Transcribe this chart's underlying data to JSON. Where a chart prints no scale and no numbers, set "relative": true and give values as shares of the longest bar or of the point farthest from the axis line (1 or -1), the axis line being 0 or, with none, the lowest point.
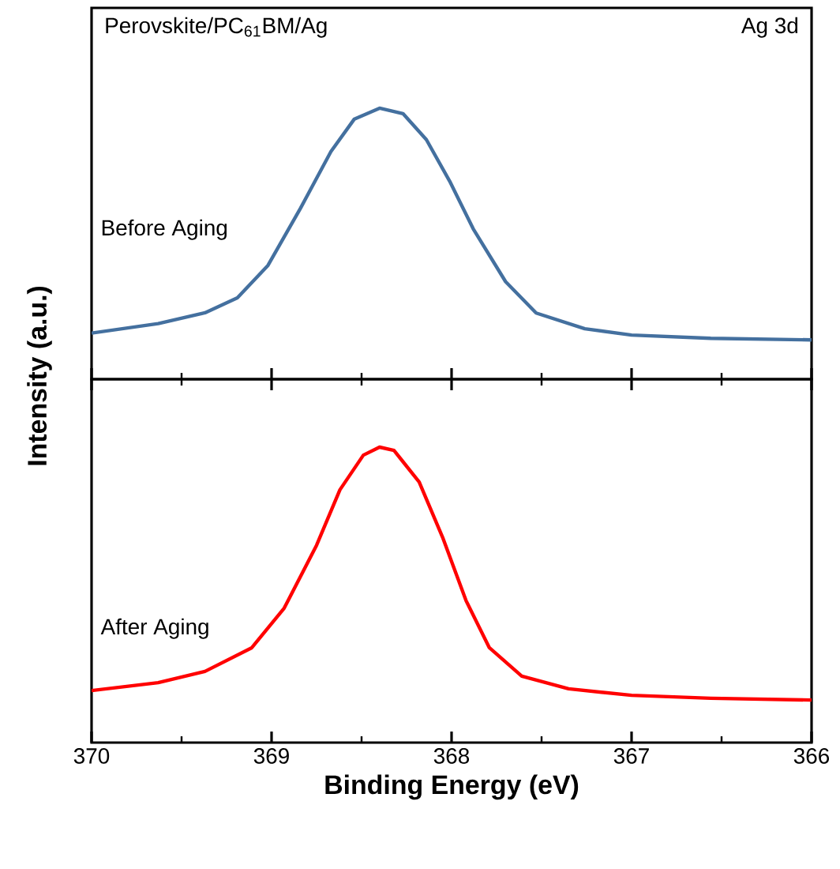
{
  "chart_data": [
    {
      "type": "line",
      "relative": true,
      "xlim": [
        370,
        366
      ],
      "xticks": [
        370,
        369,
        368,
        367,
        366
      ],
      "tick_labels": false,
      "ylabel": "Intensity (a.u.)",
      "annotations": [
        "Perovskite/PC$_{61}$BM/Ag",
        "Ag 3d"
      ],
      "series": [
        {
          "name": "Before Aging",
          "color": "#44709f",
          "x": [
            370,
            369.63,
            369.37,
            369.19,
            369.02,
            368.84,
            368.67,
            368.54,
            368.4,
            368.27,
            368.14,
            368.01,
            367.88,
            367.7,
            367.53,
            367.26,
            367.0,
            366.56,
            366.0
          ],
          "values": [
            0.17,
            0.205,
            0.245,
            0.3,
            0.42,
            0.63,
            0.84,
            0.96,
            1,
            0.98,
            0.884,
            0.73,
            0.555,
            0.36,
            0.244,
            0.186,
            0.163,
            0.151,
            0.145
          ]
        }
      ]
    },
    {
      "type": "line",
      "relative": true,
      "xlim": [
        370,
        366
      ],
      "xticks": [
        370,
        369,
        368,
        367,
        366
      ],
      "tick_labels": "x",
      "xlabel": "Binding Energy (eV)",
      "series": [
        {
          "name": "After Aging",
          "color": "#ff0000",
          "x": [
            370,
            369.63,
            369.37,
            369.11,
            368.93,
            368.75,
            368.62,
            368.49,
            368.4,
            368.32,
            368.18,
            368.05,
            367.92,
            367.79,
            367.61,
            367.35,
            367.0,
            366.56,
            366.0
          ],
          "values": [
            0.176,
            0.203,
            0.241,
            0.321,
            0.455,
            0.668,
            0.856,
            0.973,
            1,
            0.989,
            0.882,
            0.695,
            0.481,
            0.321,
            0.225,
            0.182,
            0.16,
            0.15,
            0.144
          ]
        }
      ]
    }
  ]
}
